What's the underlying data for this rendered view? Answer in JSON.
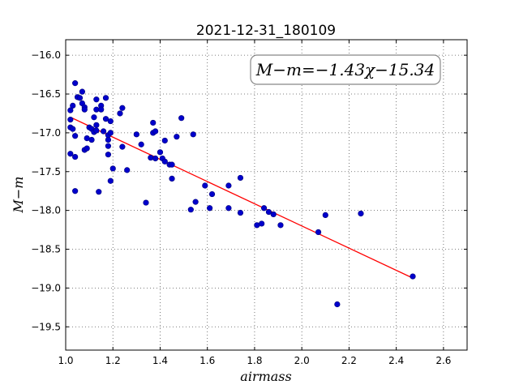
{
  "chart_data": {
    "type": "scatter",
    "title": "2021-12-31_180109",
    "xlabel": "airmass",
    "ylabel": "M−m",
    "xlim": [
      1.0,
      2.7
    ],
    "ylim": [
      -19.8,
      -15.8
    ],
    "y_inverted": true,
    "grid": true,
    "x_ticks": [
      1.0,
      1.2,
      1.4,
      1.6,
      1.8,
      2.0,
      2.2,
      2.4,
      2.6
    ],
    "x_tick_labels": [
      "1.0",
      "1.2",
      "1.4",
      "1.6",
      "1.8",
      "2.0",
      "2.2",
      "2.4",
      "2.6"
    ],
    "y_ticks": [
      -16.0,
      -16.5,
      -17.0,
      -17.5,
      -18.0,
      -18.5,
      -19.0,
      -19.5
    ],
    "y_tick_labels": [
      "−16.0",
      "−16.5",
      "−17.0",
      "−17.5",
      "−18.0",
      "−18.5",
      "−19.0",
      "−19.5"
    ],
    "annotation": "M−m=−1.43χ−15.34",
    "annotation_placement": "top-right",
    "fit": {
      "slope": -1.43,
      "intercept": -15.34,
      "x_range": [
        1.02,
        2.47
      ],
      "color": "#ff0000"
    },
    "point_color": "#0000cc",
    "points": [
      [
        1.02,
        -16.83
      ],
      [
        1.02,
        -16.93
      ],
      [
        1.02,
        -17.27
      ],
      [
        1.02,
        -16.71
      ],
      [
        1.03,
        -16.65
      ],
      [
        1.03,
        -16.95
      ],
      [
        1.04,
        -17.04
      ],
      [
        1.04,
        -17.31
      ],
      [
        1.04,
        -17.75
      ],
      [
        1.04,
        -16.36
      ],
      [
        1.05,
        -16.54
      ],
      [
        1.06,
        -16.55
      ],
      [
        1.07,
        -16.47
      ],
      [
        1.07,
        -16.62
      ],
      [
        1.08,
        -16.67
      ],
      [
        1.08,
        -16.7
      ],
      [
        1.08,
        -17.22
      ],
      [
        1.09,
        -17.2
      ],
      [
        1.09,
        -17.07
      ],
      [
        1.1,
        -16.93
      ],
      [
        1.11,
        -16.95
      ],
      [
        1.11,
        -17.09
      ],
      [
        1.12,
        -16.8
      ],
      [
        1.12,
        -16.99
      ],
      [
        1.13,
        -16.57
      ],
      [
        1.13,
        -16.7
      ],
      [
        1.13,
        -16.9
      ],
      [
        1.13,
        -16.97
      ],
      [
        1.14,
        -17.76
      ],
      [
        1.15,
        -16.65
      ],
      [
        1.15,
        -16.7
      ],
      [
        1.16,
        -16.98
      ],
      [
        1.17,
        -16.55
      ],
      [
        1.17,
        -16.82
      ],
      [
        1.18,
        -17.03
      ],
      [
        1.18,
        -17.09
      ],
      [
        1.18,
        -17.17
      ],
      [
        1.18,
        -17.28
      ],
      [
        1.19,
        -16.85
      ],
      [
        1.19,
        -17.0
      ],
      [
        1.19,
        -17.62
      ],
      [
        1.2,
        -17.46
      ],
      [
        1.23,
        -16.75
      ],
      [
        1.24,
        -16.68
      ],
      [
        1.24,
        -17.18
      ],
      [
        1.26,
        -17.48
      ],
      [
        1.3,
        -17.02
      ],
      [
        1.32,
        -17.15
      ],
      [
        1.34,
        -17.9
      ],
      [
        1.36,
        -17.32
      ],
      [
        1.37,
        -17.0
      ],
      [
        1.37,
        -16.87
      ],
      [
        1.38,
        -16.98
      ],
      [
        1.38,
        -17.33
      ],
      [
        1.4,
        -17.25
      ],
      [
        1.41,
        -17.33
      ],
      [
        1.42,
        -17.1
      ],
      [
        1.42,
        -17.37
      ],
      [
        1.44,
        -17.41
      ],
      [
        1.45,
        -17.41
      ],
      [
        1.45,
        -17.59
      ],
      [
        1.47,
        -17.05
      ],
      [
        1.49,
        -16.81
      ],
      [
        1.53,
        -17.99
      ],
      [
        1.54,
        -17.02
      ],
      [
        1.55,
        -17.89
      ],
      [
        1.59,
        -17.68
      ],
      [
        1.61,
        -17.97
      ],
      [
        1.62,
        -17.79
      ],
      [
        1.69,
        -17.68
      ],
      [
        1.69,
        -17.97
      ],
      [
        1.74,
        -17.58
      ],
      [
        1.74,
        -18.03
      ],
      [
        1.81,
        -18.19
      ],
      [
        1.83,
        -18.17
      ],
      [
        1.84,
        -17.97
      ],
      [
        1.86,
        -18.02
      ],
      [
        1.88,
        -18.05
      ],
      [
        1.91,
        -18.19
      ],
      [
        2.07,
        -18.28
      ],
      [
        2.1,
        -18.06
      ],
      [
        2.15,
        -19.21
      ],
      [
        2.25,
        -18.04
      ],
      [
        2.47,
        -18.85
      ]
    ]
  }
}
